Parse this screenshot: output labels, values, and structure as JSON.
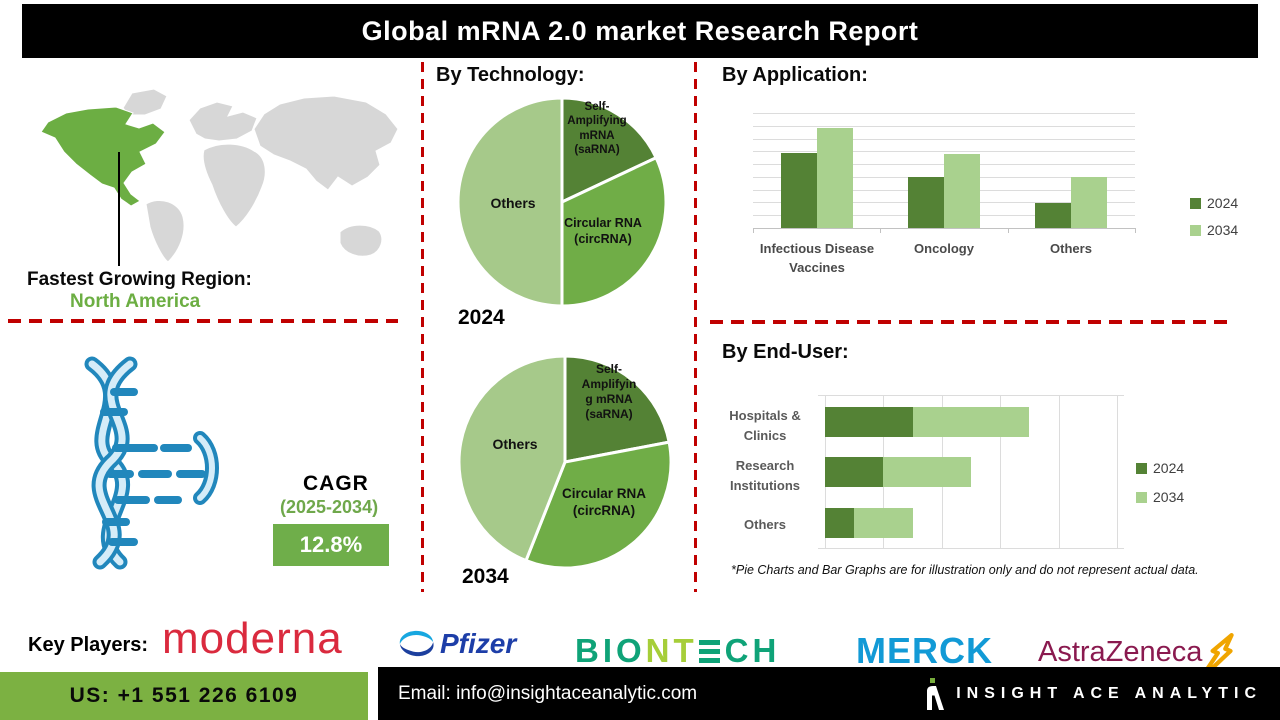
{
  "title": "Global mRNA 2.0 market Research Report",
  "region": {
    "label": "Fastest Growing Region:",
    "value": "North America"
  },
  "cagr": {
    "label": "CAGR",
    "period": "(2025-2034)",
    "value": "12.8%"
  },
  "sections": {
    "technology": "By Technology:",
    "application": "By Application:",
    "end_user": "By End-User:"
  },
  "footnote": "*Pie Charts and Bar Graphs are for illustration only and do not represent actual data.",
  "key_players": {
    "label": "Key Players:",
    "moderna": "moderna",
    "pfizer": "Pfizer",
    "biontech_left": "BIO",
    "biontech_mid": "NT",
    "biontech_right": "CH",
    "merck": "MERCK",
    "astrazeneca": "AstraZeneca"
  },
  "footer": {
    "phone": "US: +1 551 226 6109",
    "email": "Email: info@insightaceanalytic.com",
    "brand": "INSIGHT ACE ANALYTIC"
  },
  "theme": {
    "green_dark": "#548235",
    "green_mid": "#70AD47",
    "green_light": "#A9D18E",
    "pie_light": "#A6C98A",
    "map_green": "#6CAE43",
    "map_gray": "#D7D7D7",
    "dash_red": "#C00000",
    "footer_green": "#7CB142",
    "cagr_green": "#6FAE4A",
    "dna_blue": "#2187BC"
  },
  "chart_data": [
    {
      "id": "technology_2024",
      "type": "pie",
      "year_label": "2024",
      "labels": [
        "Self-Amplifying mRNA (saRNA)",
        "Circular RNA (circRNA)",
        "Others"
      ],
      "values": [
        18,
        32,
        50
      ],
      "colors": [
        "#548235",
        "#70AD47",
        "#A6C98A"
      ],
      "display_labels": [
        "Self-\nAmplifying\nmRNA\n(saRNA)",
        "Circular RNA\n(circRNA)",
        "Others"
      ]
    },
    {
      "id": "technology_2034",
      "type": "pie",
      "year_label": "2034",
      "labels": [
        "Self-Amplifying mRNA (saRNA)",
        "Circular RNA (circRNA)",
        "Others"
      ],
      "values": [
        22,
        34,
        44
      ],
      "colors": [
        "#548235",
        "#70AD47",
        "#A6C98A"
      ],
      "display_labels": [
        "Self-\nAmplifyin\ng mRNA\n(saRNA)",
        "Circular RNA\n(circRNA)",
        "Others"
      ]
    },
    {
      "id": "application",
      "type": "bar",
      "title": "By Application:",
      "categories": [
        "Infectious Disease Vaccines",
        "Oncology",
        "Others"
      ],
      "series": [
        {
          "name": "2024",
          "color": "#548235",
          "values": [
            6.5,
            4.4,
            2.2
          ]
        },
        {
          "name": "2034",
          "color": "#A9D18E",
          "values": [
            8.7,
            6.4,
            4.4
          ]
        }
      ],
      "ylim": [
        0,
        10
      ],
      "grid": true,
      "legend_position": "right"
    },
    {
      "id": "end_user",
      "type": "stacked_bar_horizontal",
      "title": "By End-User:",
      "categories": [
        "Hospitals & Clinics",
        "Research Institutions",
        "Others"
      ],
      "series": [
        {
          "name": "2024",
          "color": "#548235",
          "values": [
            1.5,
            1.0,
            0.5
          ]
        },
        {
          "name": "2034",
          "color": "#A9D18E",
          "values": [
            2.0,
            1.5,
            1.0
          ]
        }
      ],
      "xlim": [
        0,
        5
      ],
      "grid": true,
      "legend_position": "right"
    }
  ]
}
